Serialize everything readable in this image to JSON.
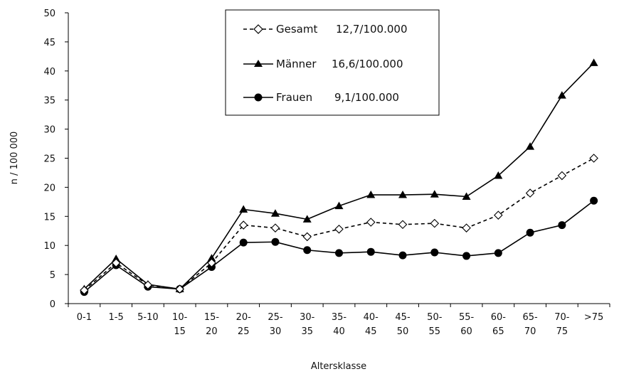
{
  "chart_data": {
    "type": "line",
    "title": "",
    "xlabel": "Altersklasse",
    "ylabel": "n / 100 000",
    "ylim": [
      0,
      50
    ],
    "yticks": [
      0,
      5,
      10,
      15,
      20,
      25,
      30,
      35,
      40,
      45,
      50
    ],
    "grid": false,
    "legend_position": "top-center",
    "categories": [
      [
        "0-1"
      ],
      [
        "1-5"
      ],
      [
        "5-10"
      ],
      [
        "10-",
        "15"
      ],
      [
        "15-",
        "20"
      ],
      [
        "20-",
        "25"
      ],
      [
        "25-",
        "30"
      ],
      [
        "30-",
        "35"
      ],
      [
        "35-",
        "40"
      ],
      [
        "40-",
        "45"
      ],
      [
        "45-",
        "50"
      ],
      [
        "50-",
        "55"
      ],
      [
        "55-",
        "60"
      ],
      [
        "60-",
        "65"
      ],
      [
        "65-",
        "70"
      ],
      [
        "70-",
        "75"
      ],
      [
        ">75"
      ]
    ],
    "series": [
      {
        "name": "Gesamt",
        "legend_value": "12,7/100.000",
        "line": "dashed",
        "marker": "diamond-open",
        "color": "#000000",
        "values": [
          2.3,
          7.0,
          3.2,
          2.5,
          7.0,
          13.5,
          13.0,
          11.5,
          12.8,
          14.0,
          13.6,
          13.8,
          13.0,
          15.2,
          19.0,
          22.0,
          25.0
        ]
      },
      {
        "name": "Männer",
        "legend_value": "16,6/100.000",
        "line": "solid",
        "marker": "triangle",
        "color": "#000000",
        "values": [
          2.5,
          7.7,
          3.3,
          2.5,
          7.8,
          16.2,
          15.5,
          14.5,
          16.8,
          18.7,
          18.7,
          18.8,
          18.4,
          22.0,
          27.0,
          35.8,
          41.4
        ]
      },
      {
        "name": "Frauen",
        "legend_value": "9,1/100.000",
        "line": "solid",
        "marker": "circle",
        "color": "#000000",
        "values": [
          2.0,
          6.6,
          2.9,
          2.5,
          6.3,
          10.5,
          10.6,
          9.2,
          8.7,
          8.9,
          8.3,
          8.8,
          8.2,
          8.7,
          12.2,
          13.5,
          17.7
        ]
      }
    ]
  }
}
